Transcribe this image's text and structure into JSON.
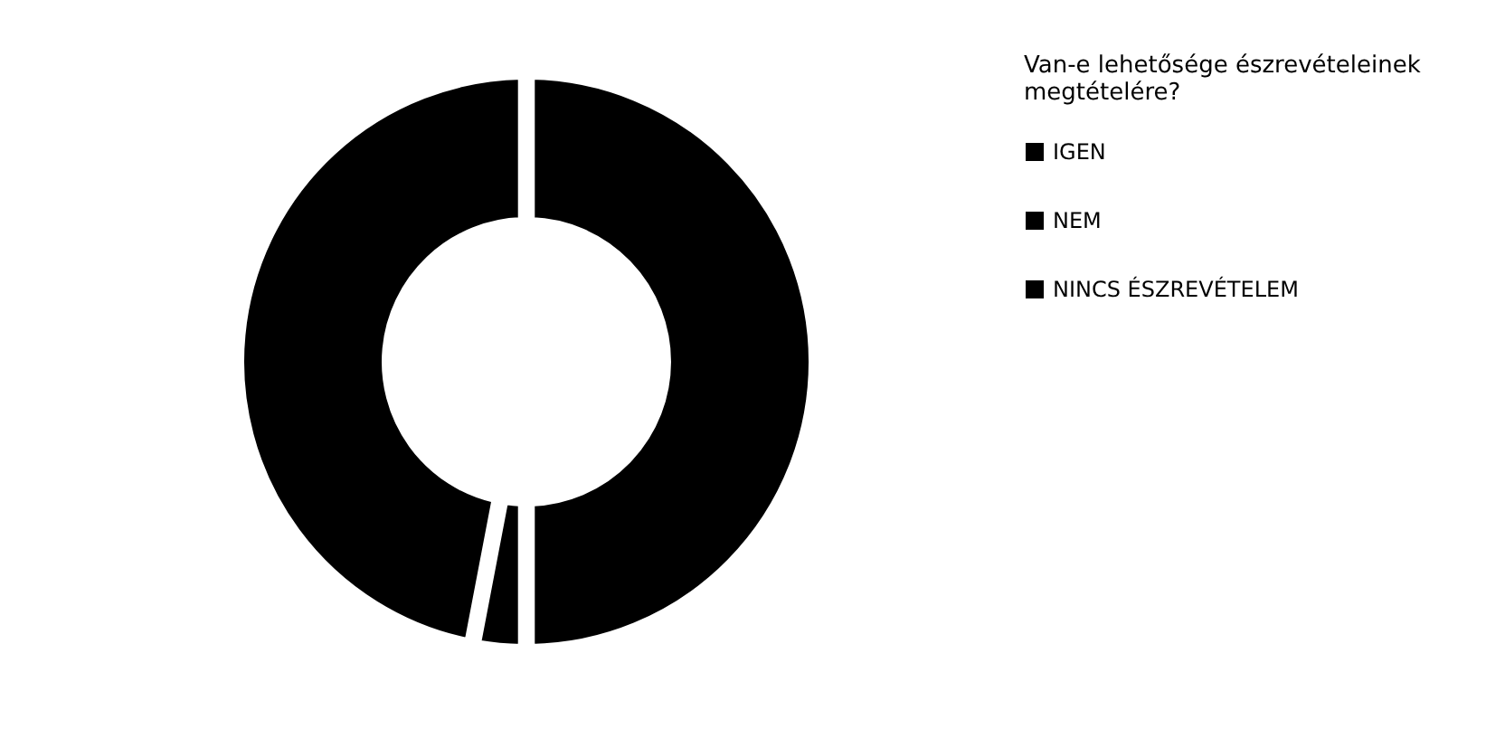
{
  "chart_data": {
    "type": "donut",
    "legend_title": "Van-e lehetősége észrevételeinek megtételére?",
    "categories": [
      "IGEN",
      "NEM",
      "NINCS ÉSZREVÉTELEM"
    ],
    "values": [
      50,
      3,
      47
    ],
    "colors": [
      "#000000",
      "#000000",
      "#000000"
    ],
    "legend": "right"
  }
}
